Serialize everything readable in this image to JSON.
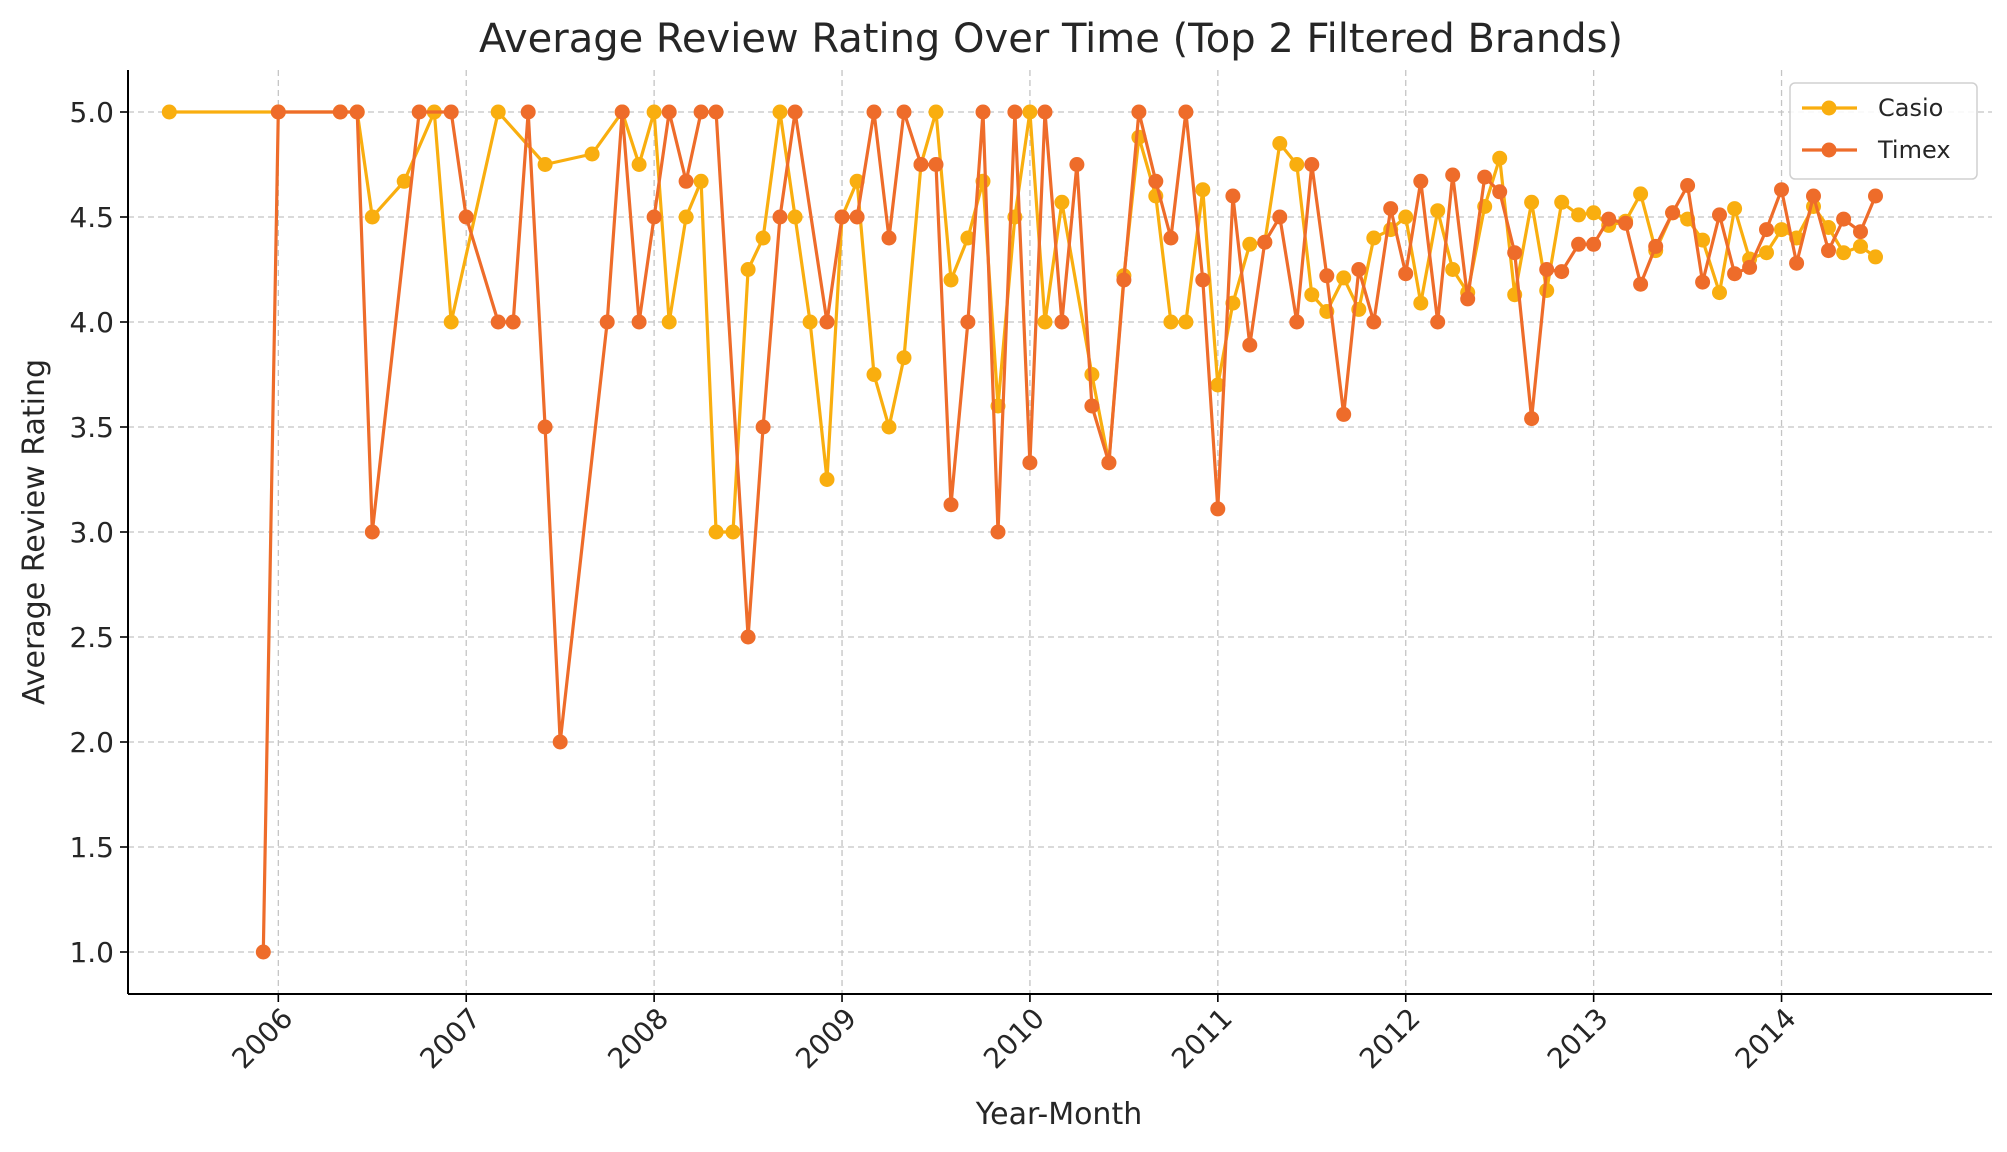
{
  "chart_data": {
    "type": "line",
    "title": "Average Review Rating Over Time (Top 2 Filtered Brands)",
    "xlabel": "Year-Month",
    "ylabel": "Average Review Rating",
    "xlim": [
      2005.2,
      2015.12
    ],
    "ylim": [
      0.8,
      5.2
    ],
    "xticks": [
      {
        "value": 2006,
        "label": "2006"
      },
      {
        "value": 2007,
        "label": "2007"
      },
      {
        "value": 2008,
        "label": "2008"
      },
      {
        "value": 2009,
        "label": "2009"
      },
      {
        "value": 2010,
        "label": "2010"
      },
      {
        "value": 2011,
        "label": "2011"
      },
      {
        "value": 2012,
        "label": "2012"
      },
      {
        "value": 2013,
        "label": "2013"
      },
      {
        "value": 2014,
        "label": "2014"
      }
    ],
    "yticks": [
      {
        "value": 1.0,
        "label": "1.0"
      },
      {
        "value": 1.5,
        "label": "1.5"
      },
      {
        "value": 2.0,
        "label": "2.0"
      },
      {
        "value": 2.5,
        "label": "2.5"
      },
      {
        "value": 3.0,
        "label": "3.0"
      },
      {
        "value": 3.5,
        "label": "3.5"
      },
      {
        "value": 4.0,
        "label": "4.0"
      },
      {
        "value": 4.5,
        "label": "4.5"
      },
      {
        "value": 5.0,
        "label": "5.0"
      }
    ],
    "grid": true,
    "legend_position": "top-right",
    "series": [
      {
        "name": "Casio",
        "color": "#F9AE0F",
        "points": [
          [
            2005.42,
            5.0
          ],
          [
            2006.0,
            5.0
          ],
          [
            2006.33,
            5.0
          ],
          [
            2006.42,
            5.0
          ],
          [
            2006.5,
            4.5
          ],
          [
            2006.67,
            4.67
          ],
          [
            2006.83,
            5.0
          ],
          [
            2006.92,
            4.0
          ],
          [
            2007.17,
            5.0
          ],
          [
            2007.42,
            4.75
          ],
          [
            2007.67,
            4.8
          ],
          [
            2007.83,
            5.0
          ],
          [
            2007.92,
            4.75
          ],
          [
            2008.0,
            5.0
          ],
          [
            2008.08,
            4.0
          ],
          [
            2008.17,
            4.5
          ],
          [
            2008.25,
            4.67
          ],
          [
            2008.33,
            3.0
          ],
          [
            2008.42,
            3.0
          ],
          [
            2008.5,
            4.25
          ],
          [
            2008.58,
            4.4
          ],
          [
            2008.67,
            5.0
          ],
          [
            2008.75,
            4.5
          ],
          [
            2008.83,
            4.0
          ],
          [
            2008.92,
            3.25
          ],
          [
            2009.0,
            4.5
          ],
          [
            2009.08,
            4.67
          ],
          [
            2009.17,
            3.75
          ],
          [
            2009.25,
            3.5
          ],
          [
            2009.33,
            3.83
          ],
          [
            2009.42,
            4.75
          ],
          [
            2009.5,
            5.0
          ],
          [
            2009.58,
            4.2
          ],
          [
            2009.67,
            4.4
          ],
          [
            2009.75,
            4.67
          ],
          [
            2009.83,
            3.6
          ],
          [
            2009.92,
            4.5
          ],
          [
            2010.0,
            5.0
          ],
          [
            2010.08,
            4.0
          ],
          [
            2010.17,
            4.57
          ],
          [
            2010.33,
            3.75
          ],
          [
            2010.42,
            3.33
          ],
          [
            2010.5,
            4.22
          ],
          [
            2010.58,
            4.88
          ],
          [
            2010.67,
            4.6
          ],
          [
            2010.75,
            4.0
          ],
          [
            2010.83,
            4.0
          ],
          [
            2010.92,
            4.63
          ],
          [
            2011.0,
            3.7
          ],
          [
            2011.08,
            4.09
          ],
          [
            2011.17,
            4.37
          ],
          [
            2011.25,
            4.38
          ],
          [
            2011.33,
            4.85
          ],
          [
            2011.42,
            4.75
          ],
          [
            2011.5,
            4.13
          ],
          [
            2011.58,
            4.05
          ],
          [
            2011.67,
            4.21
          ],
          [
            2011.75,
            4.06
          ],
          [
            2011.83,
            4.4
          ],
          [
            2011.92,
            4.44
          ],
          [
            2012.0,
            4.5
          ],
          [
            2012.08,
            4.09
          ],
          [
            2012.17,
            4.53
          ],
          [
            2012.25,
            4.25
          ],
          [
            2012.33,
            4.14
          ],
          [
            2012.42,
            4.55
          ],
          [
            2012.5,
            4.78
          ],
          [
            2012.58,
            4.13
          ],
          [
            2012.67,
            4.57
          ],
          [
            2012.75,
            4.15
          ],
          [
            2012.83,
            4.57
          ],
          [
            2012.92,
            4.51
          ],
          [
            2013.0,
            4.52
          ],
          [
            2013.08,
            4.46
          ],
          [
            2013.17,
            4.48
          ],
          [
            2013.25,
            4.61
          ],
          [
            2013.33,
            4.34
          ],
          [
            2013.42,
            4.52
          ],
          [
            2013.5,
            4.49
          ],
          [
            2013.58,
            4.39
          ],
          [
            2013.67,
            4.14
          ],
          [
            2013.75,
            4.54
          ],
          [
            2013.83,
            4.3
          ],
          [
            2013.92,
            4.33
          ],
          [
            2014.0,
            4.44
          ],
          [
            2014.08,
            4.4
          ],
          [
            2014.17,
            4.55
          ],
          [
            2014.25,
            4.45
          ],
          [
            2014.33,
            4.33
          ],
          [
            2014.42,
            4.36
          ],
          [
            2014.5,
            4.31
          ]
        ]
      },
      {
        "name": "Timex",
        "color": "#EE6C2A",
        "points": [
          [
            2005.92,
            1.0
          ],
          [
            2006.0,
            5.0
          ],
          [
            2006.33,
            5.0
          ],
          [
            2006.42,
            5.0
          ],
          [
            2006.5,
            3.0
          ],
          [
            2006.75,
            5.0
          ],
          [
            2006.92,
            5.0
          ],
          [
            2007.0,
            4.5
          ],
          [
            2007.17,
            4.0
          ],
          [
            2007.25,
            4.0
          ],
          [
            2007.33,
            5.0
          ],
          [
            2007.42,
            3.5
          ],
          [
            2007.5,
            2.0
          ],
          [
            2007.75,
            4.0
          ],
          [
            2007.83,
            5.0
          ],
          [
            2007.92,
            4.0
          ],
          [
            2008.0,
            4.5
          ],
          [
            2008.08,
            5.0
          ],
          [
            2008.17,
            4.67
          ],
          [
            2008.25,
            5.0
          ],
          [
            2008.33,
            5.0
          ],
          [
            2008.5,
            2.5
          ],
          [
            2008.58,
            3.5
          ],
          [
            2008.67,
            4.5
          ],
          [
            2008.75,
            5.0
          ],
          [
            2008.92,
            4.0
          ],
          [
            2009.0,
            4.5
          ],
          [
            2009.08,
            4.5
          ],
          [
            2009.17,
            5.0
          ],
          [
            2009.25,
            4.4
          ],
          [
            2009.33,
            5.0
          ],
          [
            2009.42,
            4.75
          ],
          [
            2009.5,
            4.75
          ],
          [
            2009.58,
            3.13
          ],
          [
            2009.67,
            4.0
          ],
          [
            2009.75,
            5.0
          ],
          [
            2009.83,
            3.0
          ],
          [
            2009.92,
            5.0
          ],
          [
            2010.0,
            3.33
          ],
          [
            2010.08,
            5.0
          ],
          [
            2010.17,
            4.0
          ],
          [
            2010.25,
            4.75
          ],
          [
            2010.33,
            3.6
          ],
          [
            2010.42,
            3.33
          ],
          [
            2010.5,
            4.2
          ],
          [
            2010.58,
            5.0
          ],
          [
            2010.67,
            4.67
          ],
          [
            2010.75,
            4.4
          ],
          [
            2010.83,
            5.0
          ],
          [
            2010.92,
            4.2
          ],
          [
            2011.0,
            3.11
          ],
          [
            2011.08,
            4.6
          ],
          [
            2011.17,
            3.89
          ],
          [
            2011.25,
            4.38
          ],
          [
            2011.33,
            4.5
          ],
          [
            2011.42,
            4.0
          ],
          [
            2011.5,
            4.75
          ],
          [
            2011.58,
            4.22
          ],
          [
            2011.67,
            3.56
          ],
          [
            2011.75,
            4.25
          ],
          [
            2011.83,
            4.0
          ],
          [
            2011.92,
            4.54
          ],
          [
            2012.0,
            4.23
          ],
          [
            2012.08,
            4.67
          ],
          [
            2012.17,
            4.0
          ],
          [
            2012.25,
            4.7
          ],
          [
            2012.33,
            4.11
          ],
          [
            2012.42,
            4.69
          ],
          [
            2012.5,
            4.62
          ],
          [
            2012.58,
            4.33
          ],
          [
            2012.67,
            3.54
          ],
          [
            2012.75,
            4.25
          ],
          [
            2012.83,
            4.24
          ],
          [
            2012.92,
            4.37
          ],
          [
            2013.0,
            4.37
          ],
          [
            2013.08,
            4.49
          ],
          [
            2013.17,
            4.47
          ],
          [
            2013.25,
            4.18
          ],
          [
            2013.33,
            4.36
          ],
          [
            2013.42,
            4.52
          ],
          [
            2013.5,
            4.65
          ],
          [
            2013.58,
            4.19
          ],
          [
            2013.67,
            4.51
          ],
          [
            2013.75,
            4.23
          ],
          [
            2013.83,
            4.26
          ],
          [
            2013.92,
            4.44
          ],
          [
            2014.0,
            4.63
          ],
          [
            2014.08,
            4.28
          ],
          [
            2014.17,
            4.6
          ],
          [
            2014.25,
            4.34
          ],
          [
            2014.33,
            4.49
          ],
          [
            2014.42,
            4.43
          ],
          [
            2014.5,
            4.6
          ]
        ]
      }
    ]
  }
}
